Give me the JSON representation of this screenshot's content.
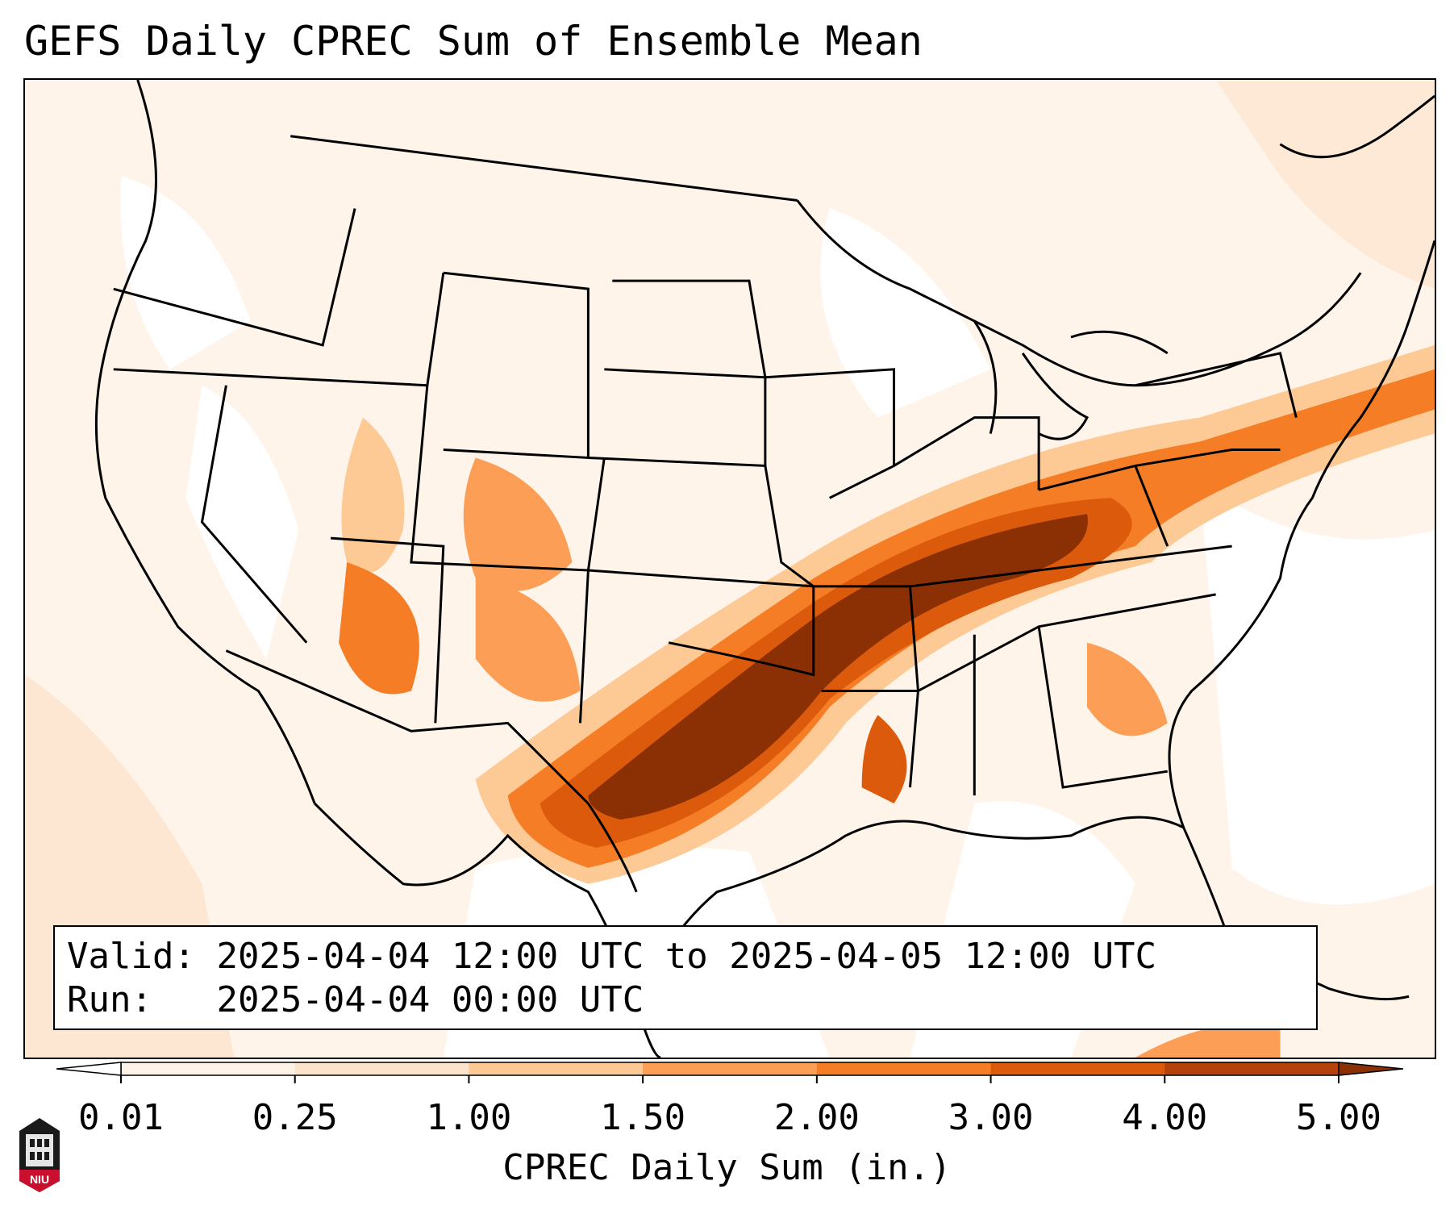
{
  "title": "GEFS Daily CPREC Sum of Ensemble Mean",
  "info": {
    "valid_label": "Valid:",
    "valid_value": "2025-04-04 12:00 UTC to 2025-04-05 12:00 UTC",
    "run_label": "Run:",
    "run_value": "2025-04-04 00:00 UTC"
  },
  "colorbar": {
    "label": "CPREC Daily Sum (in.)",
    "ticks": [
      "0.01",
      "0.25",
      "1.00",
      "1.50",
      "2.00",
      "3.00",
      "4.00",
      "5.00"
    ],
    "colors": [
      "#fff2e6",
      "#fde3cb",
      "#fdc995",
      "#fc9e55",
      "#f57d26",
      "#dc5a0c",
      "#b5420b"
    ],
    "under_color": "#ffffff",
    "over_color": "#8b3004"
  },
  "logo": {
    "text": "NIU",
    "color": "#c8102e"
  }
}
